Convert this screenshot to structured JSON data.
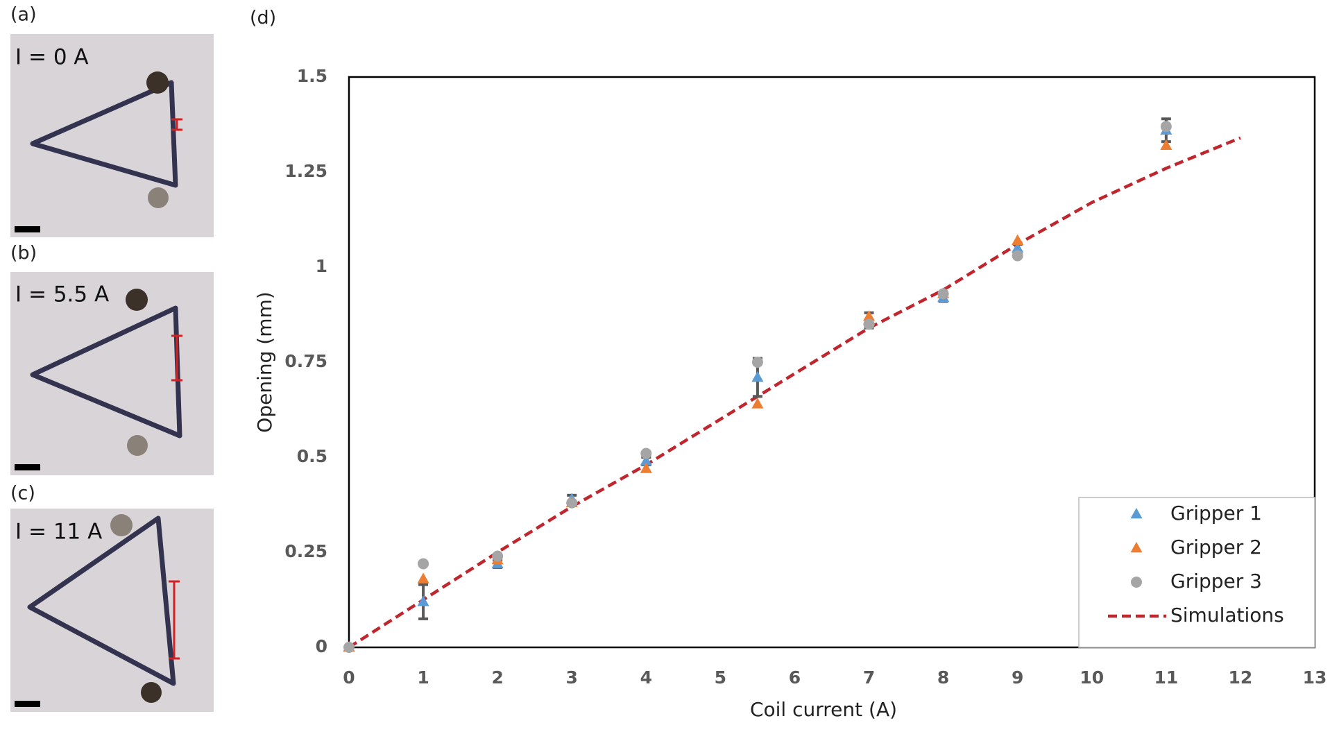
{
  "panels": [
    {
      "label": "(a)",
      "current_label": "I = 0 A"
    },
    {
      "label": "(b)",
      "current_label": "I = 5.5 A"
    },
    {
      "label": "(c)",
      "current_label": "I = 11 A"
    }
  ],
  "chart_data": {
    "type": "scatter",
    "panel_label": "(d)",
    "xlabel": "Coil current (A)",
    "ylabel": "Opening (mm)",
    "xlim": [
      0,
      13
    ],
    "ylim": [
      0,
      1.5
    ],
    "xticks": [
      0,
      1,
      2,
      3,
      4,
      5,
      6,
      7,
      8,
      9,
      10,
      11,
      12,
      13
    ],
    "yticks": [
      0,
      0.25,
      0.5,
      0.75,
      1,
      {
        "value": 1.25,
        "label": "1.25"
      },
      1.5
    ],
    "x": [
      0,
      1,
      2,
      3,
      4,
      5.5,
      7,
      8,
      9,
      11
    ],
    "series": [
      {
        "name": "Gripper 1",
        "color": "#5b9bd5",
        "marker": "triangle",
        "values": [
          0,
          0.12,
          0.22,
          0.39,
          0.49,
          0.71,
          0.86,
          0.92,
          1.05,
          1.36
        ],
        "errors": [
          0,
          0.045,
          0.01,
          0.01,
          0.01,
          0.05,
          0.02,
          0.01,
          0.01,
          0.03
        ]
      },
      {
        "name": "Gripper 2",
        "color": "#ed7d31",
        "marker": "triangle",
        "values": [
          0,
          0.18,
          0.23,
          0.38,
          0.47,
          0.64,
          0.87,
          0.93,
          1.07,
          1.32
        ]
      },
      {
        "name": "Gripper 3",
        "color": "#a5a5a5",
        "marker": "circle",
        "values": [
          0,
          0.22,
          0.24,
          0.38,
          0.51,
          0.75,
          0.85,
          0.93,
          1.03,
          1.37
        ]
      },
      {
        "name": "Simulations",
        "color": "#c0262d",
        "marker": "dashed-line",
        "x": [
          0,
          1,
          2,
          3,
          4,
          5,
          6,
          7,
          8,
          9,
          10,
          11,
          12
        ],
        "values": [
          0,
          0.125,
          0.25,
          0.37,
          0.48,
          0.6,
          0.72,
          0.84,
          0.94,
          1.06,
          1.17,
          1.26,
          1.34
        ]
      }
    ],
    "legend": "lower right",
    "error_color": "#595959",
    "grid": false
  }
}
